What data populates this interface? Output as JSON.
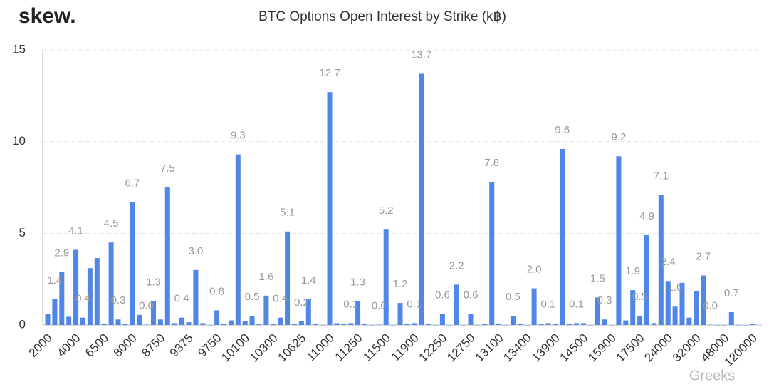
{
  "logo": "skew.",
  "watermark": "Greeks",
  "chart_data": {
    "type": "bar",
    "title": "BTC Options Open Interest by Strike (k฿)",
    "categories": [
      "2000",
      null,
      null,
      null,
      "4000",
      null,
      null,
      null,
      "6500",
      null,
      null,
      null,
      "8000",
      null,
      null,
      null,
      "8750",
      null,
      null,
      null,
      "9375",
      null,
      null,
      null,
      "9750",
      null,
      null,
      null,
      "10100",
      null,
      null,
      null,
      "10300",
      null,
      null,
      null,
      "10625",
      null,
      null,
      null,
      "11000",
      null,
      null,
      null,
      "11250",
      null,
      null,
      null,
      "11500",
      null,
      null,
      null,
      "11900",
      null,
      null,
      null,
      "12250",
      null,
      null,
      null,
      "12750",
      null,
      null,
      null,
      "13100",
      null,
      null,
      null,
      "13400",
      null,
      null,
      null,
      "13900",
      null,
      null,
      null,
      "14500",
      null,
      null,
      null,
      "15900",
      null,
      null,
      null,
      "17500",
      null,
      null,
      null,
      "24000",
      null,
      null,
      null,
      "32000",
      null,
      null,
      null,
      "48000",
      null,
      null,
      null,
      "120000"
    ],
    "values": [
      0.6,
      1.4,
      2.9,
      0.45,
      4.1,
      0.4,
      3.1,
      3.65,
      0.05,
      4.5,
      0.3,
      0.05,
      6.7,
      0.55,
      0.02,
      1.3,
      0.3,
      7.5,
      0.1,
      0.4,
      0.15,
      3.0,
      0.1,
      0,
      0.8,
      0.05,
      0.25,
      9.3,
      0.2,
      0.5,
      0.05,
      1.6,
      0.05,
      0.4,
      5.1,
      0.05,
      0.2,
      1.4,
      0.05,
      0,
      12.7,
      0.1,
      0.05,
      0.1,
      1.3,
      0.05,
      0,
      0.02,
      5.2,
      0,
      1.2,
      0.05,
      0.1,
      13.7,
      0.05,
      0,
      0.6,
      0,
      2.2,
      0,
      0.6,
      0,
      0.05,
      7.8,
      0.05,
      0,
      0.5,
      0.05,
      0,
      2.0,
      0.05,
      0.1,
      0.05,
      9.6,
      0.05,
      0.1,
      0.1,
      0,
      1.5,
      0.3,
      0,
      9.2,
      0.25,
      1.9,
      0.5,
      4.9,
      0.1,
      7.1,
      2.4,
      1.0,
      2.3,
      0.4,
      1.85,
      2.7,
      0.02,
      0,
      0,
      0.7,
      0,
      0,
      0.05
    ],
    "value_labels": [
      null,
      "1.4",
      "2.9",
      null,
      "4.1",
      "0.4",
      null,
      null,
      null,
      "4.5",
      "0.3",
      null,
      "6.7",
      null,
      "0.0",
      "1.3",
      null,
      "7.5",
      null,
      "0.4",
      null,
      "3.0",
      null,
      null,
      "0.8",
      null,
      null,
      "9.3",
      null,
      "0.5",
      null,
      "1.6",
      null,
      "0.4",
      "5.1",
      null,
      "0.2",
      "1.4",
      null,
      null,
      "12.7",
      null,
      null,
      "0.1",
      "1.3",
      null,
      null,
      "0.0",
      "5.2",
      null,
      "1.2",
      null,
      "0.1",
      "13.7",
      null,
      null,
      "0.6",
      null,
      "2.2",
      null,
      "0.6",
      null,
      null,
      "7.8",
      null,
      null,
      "0.5",
      null,
      null,
      "2.0",
      null,
      "0.1",
      null,
      "9.6",
      null,
      "0.1",
      null,
      null,
      "1.5",
      "0.3",
      null,
      "9.2",
      null,
      "1.9",
      "0.5",
      "4.9",
      null,
      "7.1",
      "2.4",
      "1.0",
      null,
      null,
      null,
      "2.7",
      "0.0",
      null,
      null,
      "0.7",
      null,
      null,
      null
    ],
    "color": "#4f86e8",
    "ylim": [
      0,
      15
    ],
    "yticks": [
      0,
      5,
      10,
      15
    ],
    "grid": true
  }
}
